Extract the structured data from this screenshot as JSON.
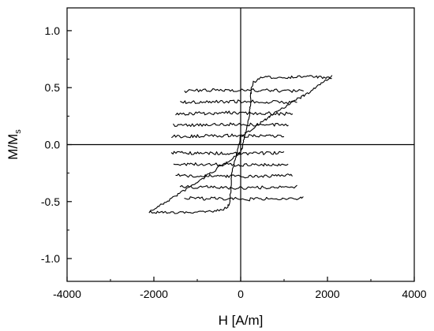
{
  "chart_data": {
    "type": "line",
    "title": "",
    "xlabel": "H [A/m]",
    "ylabel_main": "M/M",
    "ylabel_sub": "s",
    "xlim": [
      -4000,
      4000
    ],
    "ylim": [
      -1.2,
      1.2
    ],
    "x_ticks": [
      -4000,
      -2000,
      0,
      2000,
      4000
    ],
    "x_tick_labels": [
      "-4000",
      "-2000",
      "0",
      "2000",
      "4000"
    ],
    "y_ticks": [
      -1.0,
      -0.5,
      0.0,
      0.5,
      1.0
    ],
    "y_tick_labels": [
      "-1.0",
      "-0.5",
      "0.0",
      "0.5",
      "1.0"
    ],
    "grid": false,
    "zero_lines": true,
    "line_color": "#000000",
    "outer_loop": {
      "upper_branch": [
        [
          -2100,
          -0.59
        ],
        [
          -1500,
          -0.45
        ],
        [
          -1000,
          -0.33
        ],
        [
          -500,
          -0.2
        ],
        [
          0,
          -0.07
        ],
        [
          200,
          0.25
        ],
        [
          250,
          0.5
        ],
        [
          300,
          0.55
        ],
        [
          500,
          0.59
        ],
        [
          1000,
          0.59
        ],
        [
          1600,
          0.6
        ],
        [
          2100,
          0.58
        ]
      ],
      "lower_branch": [
        [
          2100,
          0.6
        ],
        [
          1500,
          0.44
        ],
        [
          1000,
          0.33
        ],
        [
          500,
          0.2
        ],
        [
          0,
          0.07
        ],
        [
          -200,
          -0.25
        ],
        [
          -250,
          -0.5
        ],
        [
          -300,
          -0.55
        ],
        [
          -500,
          -0.58
        ],
        [
          -1000,
          -0.59
        ],
        [
          -1600,
          -0.6
        ],
        [
          -2100,
          -0.59
        ]
      ]
    },
    "minor_loops": [
      {
        "x_left": -1300,
        "x_right": 1450,
        "y_top": 0.47,
        "y_bottom": -0.47
      },
      {
        "x_left": -1400,
        "x_right": 1300,
        "y_top": 0.37,
        "y_bottom": -0.37
      },
      {
        "x_left": -1500,
        "x_right": 1200,
        "y_top": 0.27,
        "y_bottom": -0.27
      },
      {
        "x_left": -1550,
        "x_right": 1100,
        "y_top": 0.17,
        "y_bottom": -0.17
      },
      {
        "x_left": -1600,
        "x_right": 1000,
        "y_top": 0.07,
        "y_bottom": -0.07
      }
    ]
  }
}
